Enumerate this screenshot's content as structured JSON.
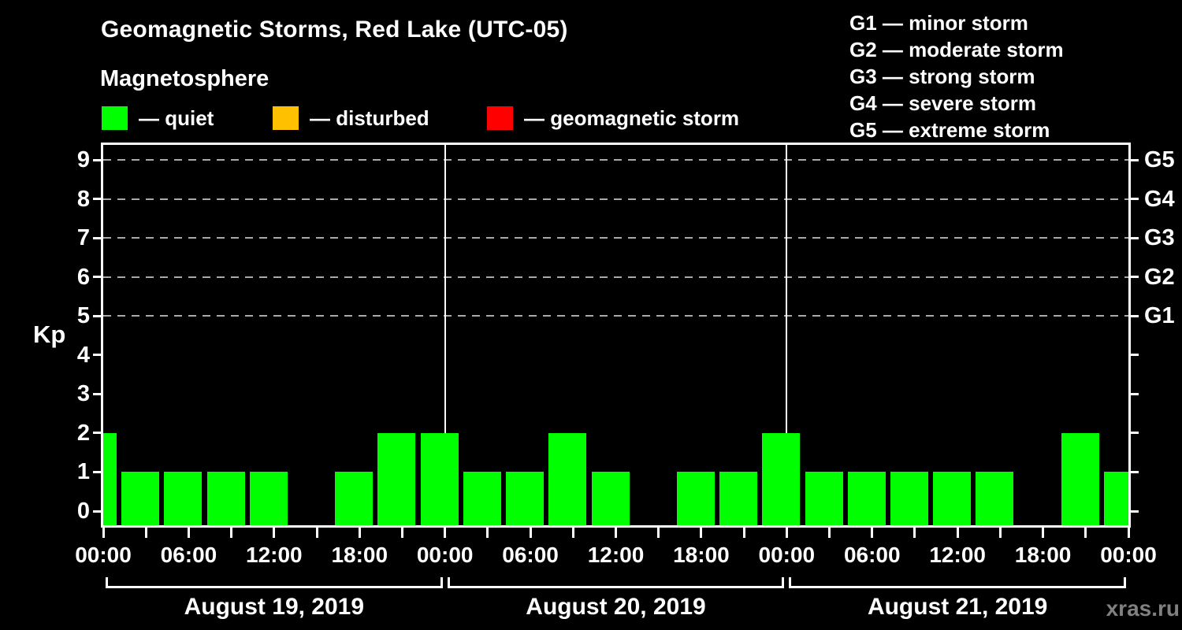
{
  "title": "Geomagnetic Storms, Red Lake (UTC-05)",
  "subtitle": "Magnetosphere",
  "watermark": "xras.ru",
  "colors": {
    "background": "#000000",
    "axis": "#ffffff",
    "gridline": "#aaaaaa",
    "quiet": "#00ff00",
    "disturbed": "#ffc000",
    "storm": "#ff0000",
    "watermark_gray": "#808080"
  },
  "legend": [
    {
      "label": "— quiet",
      "color": "#00ff00"
    },
    {
      "label": "— disturbed",
      "color": "#ffc000"
    },
    {
      "label": "— geomagnetic storm",
      "color": "#ff0000"
    }
  ],
  "storm_scale": [
    {
      "code": "G1",
      "text": "G1 — minor storm"
    },
    {
      "code": "G2",
      "text": "G2 — moderate storm"
    },
    {
      "code": "G3",
      "text": "G3 — strong storm"
    },
    {
      "code": "G4",
      "text": "G4 — severe storm"
    },
    {
      "code": "G5",
      "text": "G5 — extreme storm"
    }
  ],
  "chart_data": {
    "type": "bar",
    "title": "Geomagnetic Storms, Red Lake (UTC-05)",
    "ylabel": "Kp",
    "ylim": [
      0,
      9
    ],
    "yticks": [
      0,
      1,
      2,
      3,
      4,
      5,
      6,
      7,
      8,
      9
    ],
    "gridlines_at_kp": [
      5,
      6,
      7,
      8,
      9
    ],
    "grid": "dashed horizontal lines at Kp 5-9 only",
    "right_axis_labels": [
      {
        "kp": 9,
        "label": "G5"
      },
      {
        "kp": 8,
        "label": "G4"
      },
      {
        "kp": 7,
        "label": "G3"
      },
      {
        "kp": 6,
        "label": "G2"
      },
      {
        "kp": 5,
        "label": "G1"
      }
    ],
    "bar_color": "#00ff00",
    "interval_hours": 3,
    "x_start": "August 19, 2019 00:00",
    "x_end": "August 22, 2019 00:00",
    "kp_values": [
      2,
      1,
      1,
      1,
      1,
      0,
      1,
      2,
      2,
      1,
      1,
      2,
      1,
      0,
      1,
      1,
      2,
      1,
      1,
      1,
      1,
      1,
      0,
      2,
      1
    ],
    "x_tick_labels": [
      "00:00",
      "06:00",
      "12:00",
      "18:00",
      "00:00",
      "06:00",
      "12:00",
      "18:00",
      "00:00",
      "06:00",
      "12:00",
      "18:00",
      "00:00"
    ],
    "day_labels": [
      "August 19, 2019",
      "August 20, 2019",
      "August 21, 2019"
    ],
    "day_boundary_slots": [
      8,
      16
    ],
    "legend_position": "top-left",
    "note_first_last_bars": "first and last bars truncated at plot edges"
  }
}
